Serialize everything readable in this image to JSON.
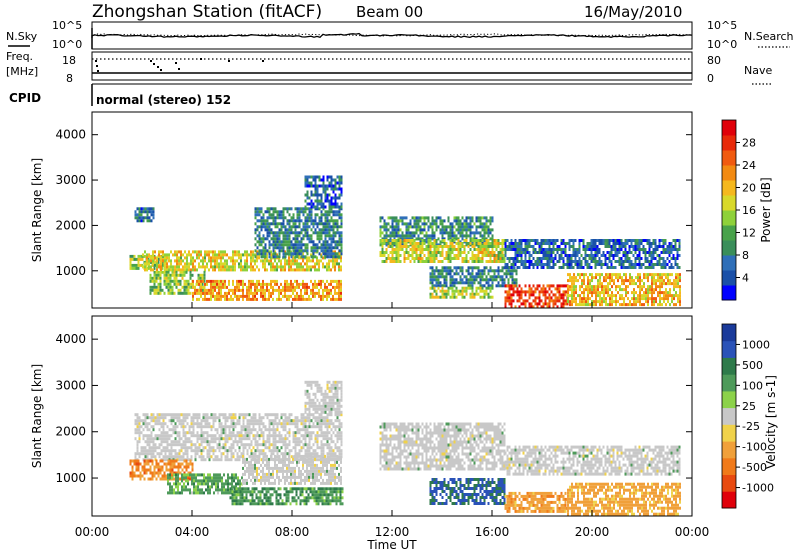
{
  "header": {
    "title": "Zhongshan Station (fitACF)",
    "beam": "Beam 00",
    "date": "16/May/2010"
  },
  "mini_panels": {
    "noise": {
      "left_label": "N.Sky",
      "right_label": "N.Search",
      "left_ticks": [
        "10^5",
        "10^0"
      ],
      "right_ticks": [
        "10^5",
        "10^0"
      ]
    },
    "freq": {
      "left_label_top": "Freq.",
      "left_label_bottom": "[MHz]",
      "right_label": "Nave",
      "left_ticks": [
        "18",
        "8"
      ],
      "right_ticks": [
        "80",
        "0"
      ]
    },
    "cpid": {
      "label": "CPID",
      "text": "normal (stereo) 152"
    }
  },
  "colors": {
    "power_scale": [
      "#0000ff",
      "#1a50a8",
      "#2f6fb8",
      "#3a8e5a",
      "#48a24a",
      "#8ed13a",
      "#d8d82a",
      "#f5b81e",
      "#f28a12",
      "#f05a10",
      "#e82a0a",
      "#e0000a"
    ],
    "velocity_scale": [
      "#1a3a9a",
      "#2a52b8",
      "#2e7a4a",
      "#4e9a5a",
      "#8cd24a",
      "#c8c8c8",
      "#f0d24a",
      "#f0a03a",
      "#f07a1a",
      "#e84a10",
      "#e0000a"
    ]
  },
  "chart_data": [
    {
      "type": "heatmap",
      "name": "power",
      "ylabel": "Slant Range [km]",
      "ylim": [
        180,
        4500
      ],
      "yticks": [
        "1000",
        "2000",
        "3000",
        "4000"
      ],
      "xlim_hours": [
        0,
        24
      ],
      "colorbar": {
        "label": "Power [dB]",
        "ticks": [
          "4",
          "8",
          "12",
          "16",
          "20",
          "24",
          "28"
        ],
        "range": [
          0,
          32
        ]
      },
      "regions": [
        {
          "t0": 1.7,
          "t1": 2.5,
          "r0": 2100,
          "r1": 2400,
          "v": 7
        },
        {
          "t0": 1.5,
          "t1": 3.0,
          "r0": 1050,
          "r1": 1350,
          "v": 15
        },
        {
          "t0": 2.0,
          "t1": 10.0,
          "r0": 1000,
          "r1": 1450,
          "v": 18
        },
        {
          "t0": 2.3,
          "t1": 4.5,
          "r0": 500,
          "r1": 1000,
          "v": 14
        },
        {
          "t0": 4.0,
          "t1": 10.0,
          "r0": 380,
          "r1": 800,
          "v": 22
        },
        {
          "t0": 6.5,
          "t1": 10.0,
          "r0": 1300,
          "r1": 2400,
          "v": 8
        },
        {
          "t0": 8.5,
          "t1": 10.0,
          "r0": 2400,
          "r1": 3100,
          "v": 6
        },
        {
          "t0": 11.5,
          "t1": 16.0,
          "r0": 1600,
          "r1": 2200,
          "v": 9
        },
        {
          "t0": 11.5,
          "t1": 16.5,
          "r0": 1200,
          "r1": 1700,
          "v": 17
        },
        {
          "t0": 13.5,
          "t1": 17.0,
          "r0": 700,
          "r1": 1100,
          "v": 8
        },
        {
          "t0": 13.5,
          "t1": 16.0,
          "r0": 450,
          "r1": 650,
          "v": 16
        },
        {
          "t0": 16.5,
          "t1": 19.0,
          "r0": 200,
          "r1": 700,
          "v": 27
        },
        {
          "t0": 16.5,
          "t1": 23.5,
          "r0": 1100,
          "r1": 1700,
          "v": 6
        },
        {
          "t0": 19.0,
          "t1": 23.5,
          "r0": 250,
          "r1": 950,
          "v": 20
        }
      ]
    },
    {
      "type": "heatmap",
      "name": "velocity",
      "ylabel": "Slant Range [km]",
      "ylim": [
        180,
        4500
      ],
      "yticks": [
        "1000",
        "2000",
        "3000",
        "4000"
      ],
      "xlabel": "Time UT",
      "xlim_hours": [
        0,
        24
      ],
      "xticks": [
        "00:00",
        "04:00",
        "08:00",
        "12:00",
        "16:00",
        "20:00",
        "00:00"
      ],
      "colorbar": {
        "label": "Velocity [m s-1]",
        "ticks": [
          "1000",
          "500",
          "100",
          "25",
          "-25",
          "-100",
          "-500",
          "-1000"
        ],
        "range": [
          -1200,
          1200
        ]
      },
      "regions": [
        {
          "t0": 1.7,
          "t1": 10.0,
          "r0": 1400,
          "r1": 2400,
          "v": 0
        },
        {
          "t0": 1.5,
          "t1": 4.0,
          "r0": 1000,
          "r1": 1400,
          "v": -300
        },
        {
          "t0": 3.0,
          "t1": 6.0,
          "r0": 700,
          "r1": 1100,
          "v": 60
        },
        {
          "t0": 5.5,
          "t1": 10.0,
          "r0": 450,
          "r1": 800,
          "v": 80
        },
        {
          "t0": 6.0,
          "t1": 10.0,
          "r0": 900,
          "r1": 1500,
          "v": 0
        },
        {
          "t0": 8.5,
          "t1": 10.0,
          "r0": 2400,
          "r1": 3100,
          "v": 0
        },
        {
          "t0": 11.5,
          "t1": 16.5,
          "r0": 1200,
          "r1": 2200,
          "v": 0
        },
        {
          "t0": 13.5,
          "t1": 16.5,
          "r0": 450,
          "r1": 1000,
          "v": 300
        },
        {
          "t0": 16.5,
          "t1": 19.0,
          "r0": 300,
          "r1": 700,
          "v": -200
        },
        {
          "t0": 19.0,
          "t1": 23.5,
          "r0": 250,
          "r1": 900,
          "v": -150
        },
        {
          "t0": 16.5,
          "t1": 23.5,
          "r0": 1100,
          "r1": 1700,
          "v": 0
        }
      ]
    }
  ]
}
